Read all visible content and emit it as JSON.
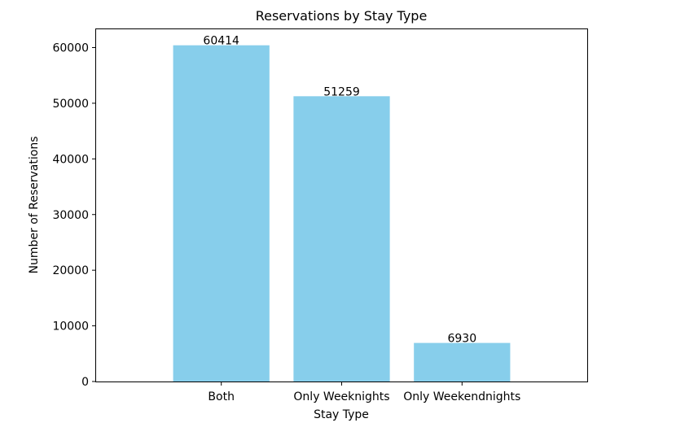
{
  "chart_data": {
    "type": "bar",
    "title": "Reservations by Stay Type",
    "xlabel": "Stay Type",
    "ylabel": "Number of Reservations",
    "categories": [
      "Both",
      "Only Weeknights",
      "Only Weekendnights"
    ],
    "values": [
      60414,
      51259,
      6930
    ],
    "data_labels": [
      "60414",
      "51259",
      "6930"
    ],
    "yticks": [
      0,
      10000,
      20000,
      30000,
      40000,
      50000,
      60000
    ],
    "ytick_labels": [
      "0",
      "10000",
      "20000",
      "30000",
      "40000",
      "50000",
      "60000"
    ],
    "ylim": [
      0,
      63435
    ],
    "bar_color": "#87ceeb",
    "grid": false
  }
}
